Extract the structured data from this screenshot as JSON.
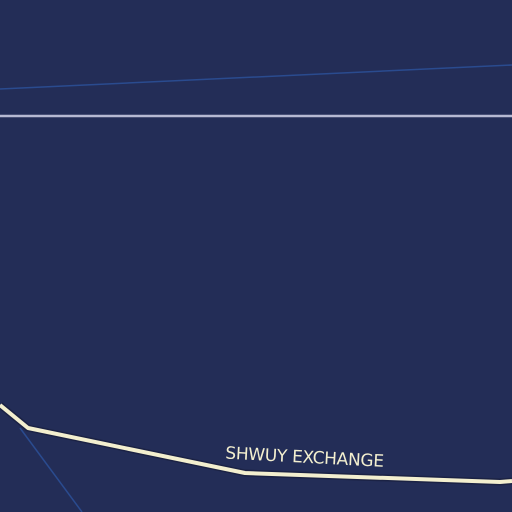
{
  "labels": {
    "road": "SHWUY EXCHANGE"
  }
}
